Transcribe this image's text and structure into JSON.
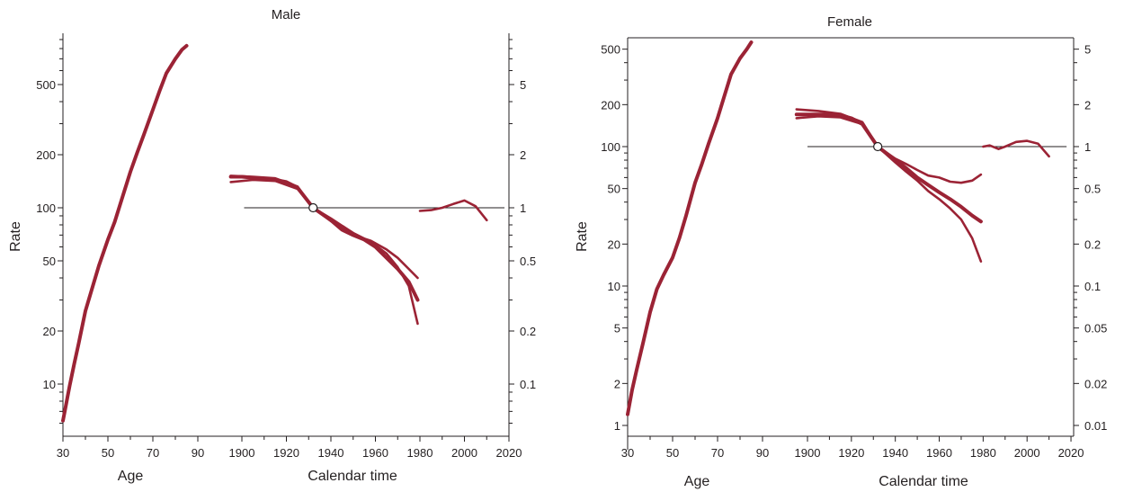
{
  "chart_data": [
    {
      "type": "line",
      "title": "Male",
      "xlabel_age": "Age",
      "xlabel_time": "Calendar time",
      "ylabel": "Rate",
      "x_ticks": [
        "30",
        "50",
        "70",
        "90",
        "1900",
        "1920",
        "1940",
        "1960",
        "1980",
        "2000",
        "2020"
      ],
      "y_left_ticks": [
        "10",
        "20",
        "50",
        "100",
        "200",
        "500"
      ],
      "y_right_ticks": [
        "0.1",
        "0.2",
        "0.5",
        "1",
        "2",
        "5"
      ],
      "y_left_scale": "log",
      "y_right_scale": "log",
      "age_range": [
        30,
        90
      ],
      "time_range": [
        1900,
        2020
      ],
      "ylim_left": [
        5.2,
        1000
      ],
      "reference_point": {
        "x": 1932,
        "y": 1
      },
      "reference_line": {
        "x_from": 1901,
        "x_to": 2018,
        "y": 1
      },
      "color": "#9b2335",
      "series": [
        {
          "group": "age",
          "x": [
            30,
            31,
            32,
            33,
            35,
            37,
            40,
            43,
            46,
            50,
            53,
            56,
            60,
            63,
            66,
            70,
            73,
            76,
            80,
            83,
            85
          ],
          "y": [
            6.2,
            7.2,
            8.4,
            9.8,
            13,
            17,
            26,
            35,
            47,
            66,
            83,
            110,
            160,
            205,
            260,
            360,
            460,
            580,
            700,
            790,
            830
          ]
        },
        {
          "group": "time",
          "x": [
            1895,
            1900,
            1905,
            1910,
            1915,
            1920,
            1925,
            1932,
            1940,
            1945,
            1950,
            1955,
            1960,
            1965,
            1970,
            1975,
            1979
          ],
          "y": [
            1.5,
            1.5,
            1.48,
            1.46,
            1.44,
            1.4,
            1.3,
            1.0,
            0.85,
            0.75,
            0.7,
            0.66,
            0.6,
            0.52,
            0.45,
            0.38,
            0.3
          ]
        },
        {
          "group": "time",
          "x": [
            1895,
            1905,
            1915,
            1925,
            1932,
            1940,
            1950,
            1958,
            1965,
            1970,
            1975,
            1979
          ],
          "y": [
            1.4,
            1.44,
            1.42,
            1.28,
            1.0,
            0.87,
            0.72,
            0.64,
            0.55,
            0.46,
            0.36,
            0.22
          ]
        },
        {
          "group": "time",
          "x": [
            1895,
            1905,
            1915,
            1925,
            1932,
            1940,
            1950,
            1958,
            1965,
            1970,
            1975,
            1979
          ],
          "y": [
            1.52,
            1.5,
            1.47,
            1.32,
            1.0,
            0.84,
            0.7,
            0.65,
            0.58,
            0.52,
            0.45,
            0.4
          ]
        },
        {
          "group": "time",
          "x": [
            1980,
            1985,
            1990,
            1995,
            2000,
            2005,
            2010
          ],
          "y": [
            0.96,
            0.97,
            1.0,
            1.05,
            1.1,
            1.02,
            0.85
          ]
        }
      ]
    },
    {
      "type": "line",
      "title": "Female",
      "xlabel_age": "Age",
      "xlabel_time": "Calendar time",
      "ylabel": "Rate",
      "x_ticks": [
        "30",
        "50",
        "70",
        "90",
        "1900",
        "1920",
        "1940",
        "1960",
        "1980",
        "2000",
        "2020"
      ],
      "y_left_ticks": [
        "1",
        "2",
        "5",
        "10",
        "20",
        "50",
        "100",
        "200",
        "500"
      ],
      "y_right_ticks": [
        "0.01",
        "0.02",
        "0.05",
        "0.1",
        "0.2",
        "0.5",
        "1",
        "2",
        "5"
      ],
      "y_left_scale": "log",
      "y_right_scale": "log",
      "age_range": [
        30,
        90
      ],
      "time_range": [
        1900,
        2020
      ],
      "ylim_left": [
        0.75,
        600
      ],
      "reference_point": {
        "x": 1932,
        "y": 1
      },
      "reference_line": {
        "x_from": 1900,
        "x_to": 2018,
        "y": 1
      },
      "color": "#9b2335",
      "series": [
        {
          "group": "age",
          "x": [
            30,
            32,
            34,
            37,
            40,
            43,
            46,
            50,
            53,
            56,
            60,
            63,
            66,
            70,
            73,
            76,
            80,
            83,
            85
          ],
          "y": [
            1.2,
            1.8,
            2.5,
            4,
            6.5,
            9.5,
            12,
            16,
            22,
            32,
            55,
            75,
            105,
            160,
            230,
            330,
            430,
            500,
            560
          ]
        },
        {
          "group": "time",
          "x": [
            1895,
            1900,
            1905,
            1910,
            1915,
            1920,
            1925,
            1932,
            1940,
            1945,
            1950,
            1955,
            1960,
            1965,
            1970,
            1975,
            1979
          ],
          "y": [
            1.7,
            1.7,
            1.7,
            1.7,
            1.67,
            1.6,
            1.45,
            1.0,
            0.8,
            0.7,
            0.6,
            0.53,
            0.47,
            0.42,
            0.37,
            0.32,
            0.29
          ]
        },
        {
          "group": "time",
          "x": [
            1895,
            1905,
            1915,
            1925,
            1932,
            1940,
            1945,
            1950,
            1955,
            1960,
            1965,
            1970,
            1975,
            1979
          ],
          "y": [
            1.6,
            1.65,
            1.62,
            1.45,
            1.0,
            0.77,
            0.66,
            0.57,
            0.48,
            0.42,
            0.36,
            0.3,
            0.22,
            0.15
          ]
        },
        {
          "group": "time",
          "x": [
            1895,
            1905,
            1915,
            1925,
            1932,
            1940,
            1945,
            1950,
            1955,
            1960,
            1965,
            1970,
            1975,
            1979
          ],
          "y": [
            1.85,
            1.8,
            1.72,
            1.5,
            1.0,
            0.82,
            0.75,
            0.68,
            0.62,
            0.6,
            0.56,
            0.55,
            0.57,
            0.63
          ]
        },
        {
          "group": "time",
          "x": [
            1980,
            1983,
            1987,
            1990,
            1995,
            2000,
            2005,
            2010
          ],
          "y": [
            1.0,
            1.02,
            0.96,
            1.0,
            1.08,
            1.1,
            1.05,
            0.85
          ]
        }
      ]
    }
  ]
}
